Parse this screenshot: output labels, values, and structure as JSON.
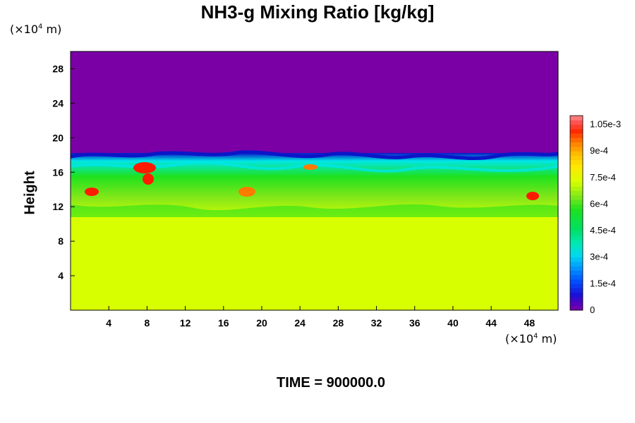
{
  "chart_data": {
    "type": "heatmap",
    "title": "NH3-g Mixing Ratio [kg/kg]",
    "ylabel": "Height",
    "x_unit": "(×10",
    "x_unit_exp": "4",
    "x_unit_tail": " m)",
    "y_unit": "(×10",
    "y_unit_exp": "4",
    "y_unit_tail": " m)",
    "xlim": [
      0,
      51
    ],
    "ylim": [
      0,
      30
    ],
    "x_ticks": [
      4,
      8,
      12,
      16,
      20,
      24,
      28,
      32,
      36,
      40,
      44,
      48
    ],
    "y_ticks": [
      4,
      8,
      12,
      16,
      20,
      24,
      28
    ],
    "colorbar": {
      "range": [
        0,
        0.0011
      ],
      "tick_values": [
        0,
        0.00015,
        0.0003,
        0.00045,
        0.0006,
        0.00075,
        0.0009,
        0.00105
      ],
      "tick_labels": [
        "0",
        "1.5e-4",
        "3e-4",
        "4.5e-4",
        "6e-4",
        "7.5e-4",
        "9e-4",
        "1.05e-3"
      ]
    },
    "field_regions": [
      {
        "layer": "upper",
        "y_range": [
          18,
          30
        ],
        "value": 0.0
      },
      {
        "layer": "turbulent",
        "y_range": [
          11,
          18
        ],
        "value": "0.0001–0.0011"
      },
      {
        "layer": "lower",
        "y_range": [
          0,
          11
        ],
        "value": 0.00075
      }
    ],
    "time_label": "TIME = 900000.0"
  },
  "colors": {
    "cb_0": "#7a00a6",
    "cb_low": "#0b16c8",
    "cb_cyan": "#00e6e6",
    "cb_green": "#1ee21e",
    "cb_yellow": "#d8ff00",
    "cb_red": "#ff1a00",
    "cb_top": "#ff7a7a"
  }
}
